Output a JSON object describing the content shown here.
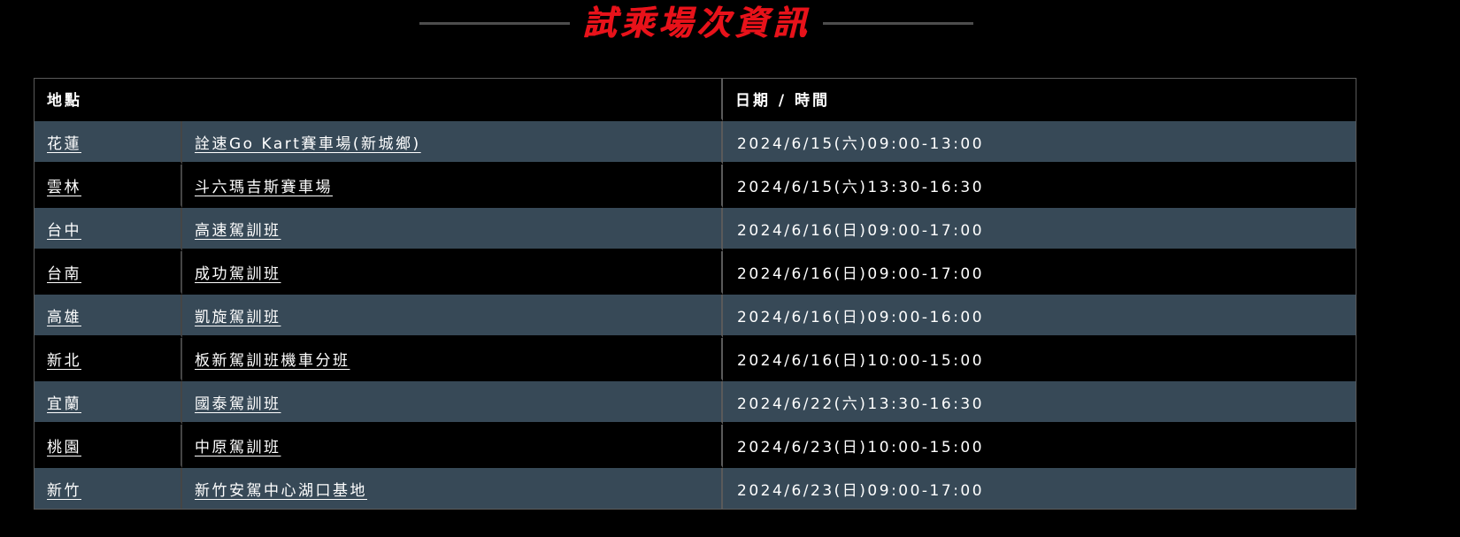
{
  "title": {
    "text": "試乘場次資訊",
    "accent_color": "#e8121a"
  },
  "table": {
    "headers": {
      "location": "地點",
      "datetime": "日期 / 時間"
    },
    "rows": [
      {
        "city": "花蓮",
        "venue": "詮速Go Kart賽車場(新城鄉)",
        "datetime": "2024/6/15(六)09:00-13:00"
      },
      {
        "city": "雲林",
        "venue": "斗六瑪吉斯賽車場",
        "datetime": "2024/6/15(六)13:30-16:30"
      },
      {
        "city": "台中",
        "venue": "高速駕訓班",
        "datetime": "2024/6/16(日)09:00-17:00"
      },
      {
        "city": "台南",
        "venue": "成功駕訓班",
        "datetime": "2024/6/16(日)09:00-17:00"
      },
      {
        "city": "高雄",
        "venue": "凱旋駕訓班",
        "datetime": "2024/6/16(日)09:00-16:00"
      },
      {
        "city": "新北",
        "venue": "板新駕訓班機車分班",
        "datetime": "2024/6/16(日)10:00-15:00"
      },
      {
        "city": "宜蘭",
        "venue": "國泰駕訓班",
        "datetime": "2024/6/22(六)13:30-16:30"
      },
      {
        "city": "桃園",
        "venue": "中原駕訓班",
        "datetime": "2024/6/23(日)10:00-15:00"
      },
      {
        "city": "新竹",
        "venue": "新竹安駕中心湖口基地",
        "datetime": "2024/6/23(日)09:00-17:00"
      }
    ],
    "colors": {
      "row_alt": "#374957",
      "row_base": "#000000",
      "border": "#5a5a5a",
      "text": "#ffffff"
    }
  }
}
